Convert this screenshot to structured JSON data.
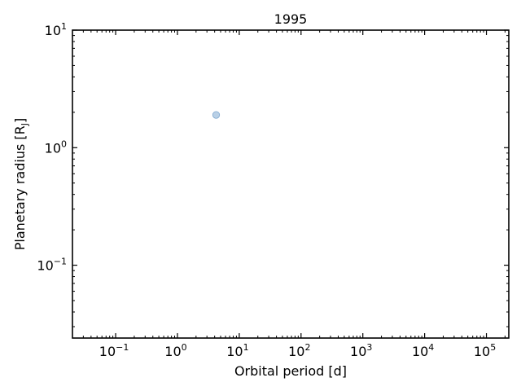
{
  "chart_data": {
    "type": "scatter",
    "title": "1995",
    "xlabel": "Orbital period [d]",
    "ylabel": "Planetary radius [R",
    "ylabel_sub": "J",
    "ylabel_close": "]",
    "xscale": "log",
    "yscale": "log",
    "xlim": [
      0.02,
      230000
    ],
    "ylim": [
      0.024,
      10
    ],
    "x_ticks": [
      {
        "value": 0.1,
        "base": "10",
        "exp": "−1"
      },
      {
        "value": 1,
        "base": "10",
        "exp": "0"
      },
      {
        "value": 10,
        "base": "10",
        "exp": "1"
      },
      {
        "value": 100,
        "base": "10",
        "exp": "2"
      },
      {
        "value": 1000,
        "base": "10",
        "exp": "3"
      },
      {
        "value": 10000,
        "base": "10",
        "exp": "4"
      },
      {
        "value": 100000,
        "base": "10",
        "exp": "5"
      }
    ],
    "y_ticks": [
      {
        "value": 0.1,
        "base": "10",
        "exp": "−1"
      },
      {
        "value": 1,
        "base": "10",
        "exp": "0"
      },
      {
        "value": 10,
        "base": "10",
        "exp": "1"
      }
    ],
    "grid": false,
    "point_color": "#a8c4e0",
    "point_edge_color": "#7fa7cf",
    "series": [
      {
        "x": [
          4.23
        ],
        "y": [
          1.9
        ]
      }
    ]
  }
}
